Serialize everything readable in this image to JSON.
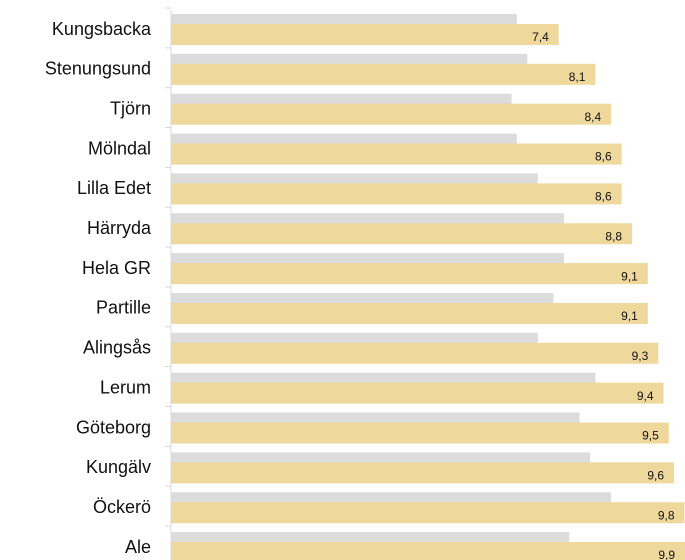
{
  "chart_data": {
    "type": "bar",
    "orientation": "horizontal",
    "categories": [
      "Kungsbacka",
      "Stenungsund",
      "Tjörn",
      "Mölndal",
      "Lilla Edet",
      "Härryda",
      "Hela GR",
      "Partille",
      "Alingsås",
      "Lerum",
      "Göteborg",
      "Kungälv",
      "Öckerö",
      "Ale"
    ],
    "series": [
      {
        "color": "#dcdcdc",
        "values": [
          6.6,
          6.8,
          6.5,
          6.6,
          7.0,
          7.5,
          7.5,
          7.3,
          7.0,
          8.1,
          7.8,
          8.0,
          8.4,
          7.6
        ]
      },
      {
        "color": "#efd89b",
        "values": [
          7.4,
          8.1,
          8.4,
          8.6,
          8.6,
          8.8,
          9.1,
          9.1,
          9.3,
          9.4,
          9.5,
          9.6,
          9.8,
          9.9
        ],
        "value_labels": [
          "7,4",
          "8,1",
          "8,4",
          "8,6",
          "8,6",
          "8,8",
          "9,1",
          "9,1",
          "9,3",
          "9,4",
          "9,5",
          "9,6",
          "9,8",
          "9,9"
        ]
      }
    ],
    "xlim": [
      0,
      10
    ]
  }
}
